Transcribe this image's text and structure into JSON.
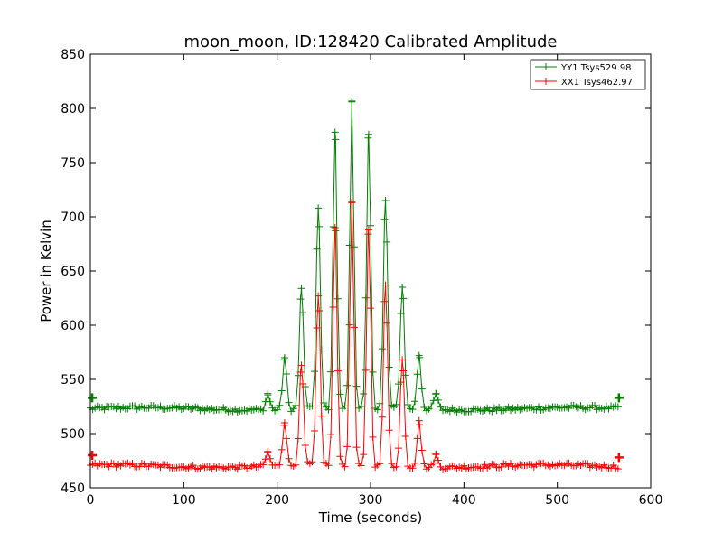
{
  "chart_data": {
    "type": "line",
    "title": "moon_moon, ID:128420 Calibrated Amplitude",
    "xlabel": "Time (seconds)",
    "ylabel": "Power in Kelvin",
    "xlim": [
      0,
      600
    ],
    "ylim": [
      450,
      850
    ],
    "xticks": [
      "0",
      "100",
      "200",
      "300",
      "400",
      "500",
      "600"
    ],
    "yticks": [
      "450",
      "500",
      "550",
      "600",
      "650",
      "700",
      "750",
      "800",
      "850"
    ],
    "grid": false,
    "legend_position": "top-right",
    "marker": "+",
    "series": [
      {
        "name": "YY1 Tsys529.98",
        "color": "#008000",
        "baseline": 523,
        "x_end": 567,
        "peaks": [
          {
            "x": 190,
            "y": 537
          },
          {
            "x": 208,
            "y": 570
          },
          {
            "x": 226,
            "y": 634
          },
          {
            "x": 244,
            "y": 708
          },
          {
            "x": 262,
            "y": 778
          },
          {
            "x": 280,
            "y": 806
          },
          {
            "x": 298,
            "y": 776
          },
          {
            "x": 316,
            "y": 715
          },
          {
            "x": 334,
            "y": 635
          },
          {
            "x": 352,
            "y": 572
          },
          {
            "x": 370,
            "y": 537
          }
        ],
        "endpoints": [
          {
            "x": 2,
            "y": 533
          },
          {
            "x": 566,
            "y": 533
          }
        ]
      },
      {
        "name": "XX1 Tsys462.97",
        "color": "#ff0000",
        "baseline": 470,
        "x_end": 567,
        "peaks": [
          {
            "x": 190,
            "y": 483
          },
          {
            "x": 208,
            "y": 510
          },
          {
            "x": 226,
            "y": 563
          },
          {
            "x": 244,
            "y": 627
          },
          {
            "x": 262,
            "y": 690
          },
          {
            "x": 280,
            "y": 713
          },
          {
            "x": 298,
            "y": 688
          },
          {
            "x": 316,
            "y": 637
          },
          {
            "x": 334,
            "y": 568
          },
          {
            "x": 352,
            "y": 512
          },
          {
            "x": 370,
            "y": 481
          }
        ],
        "endpoints": [
          {
            "x": 2,
            "y": 480
          },
          {
            "x": 566,
            "y": 478
          }
        ]
      }
    ]
  }
}
